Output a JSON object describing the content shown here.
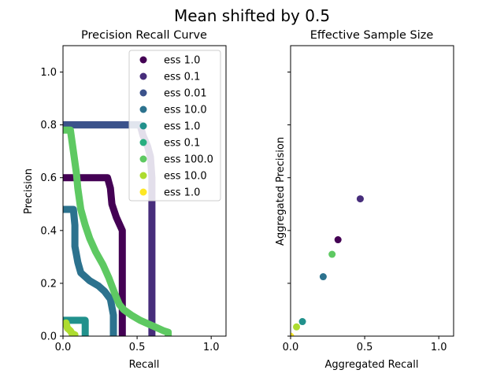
{
  "suptitle": "Mean shifted by  0.5",
  "chart_data": [
    {
      "type": "line",
      "title": "Precision Recall Curve",
      "xlabel": "Recall",
      "ylabel": "Precision",
      "xlim": [
        0,
        1.1
      ],
      "ylim": [
        0,
        1.1
      ],
      "xticks": [
        "0.0",
        "0.5",
        "1.0"
      ],
      "yticks": [
        "0.0",
        "0.2",
        "0.4",
        "0.6",
        "0.8",
        "1.0"
      ],
      "legend_position": "top-right",
      "series": [
        {
          "name": "ess 1.0",
          "color": "#440154",
          "points": [
            [
              0,
              0.6
            ],
            [
              0.3,
              0.6
            ],
            [
              0.32,
              0.56
            ],
            [
              0.33,
              0.5
            ],
            [
              0.36,
              0.45
            ],
            [
              0.4,
              0.4
            ],
            [
              0.4,
              0
            ]
          ]
        },
        {
          "name": "ess 0.1",
          "color": "#472d7b",
          "points": [
            [
              0,
              0.8
            ],
            [
              0.52,
              0.8
            ],
            [
              0.54,
              0.76
            ],
            [
              0.57,
              0.72
            ],
            [
              0.59,
              0.68
            ],
            [
              0.6,
              0.6
            ],
            [
              0.6,
              0
            ]
          ]
        },
        {
          "name": "ess 0.01",
          "color": "#3b528b",
          "points": [
            [
              0,
              0.8
            ],
            [
              0.52,
              0.8
            ]
          ]
        },
        {
          "name": "ess 10.0",
          "color": "#2c728e",
          "points": [
            [
              0,
              0.48
            ],
            [
              0.07,
              0.48
            ],
            [
              0.08,
              0.42
            ],
            [
              0.08,
              0.34
            ],
            [
              0.1,
              0.28
            ],
            [
              0.12,
              0.24
            ],
            [
              0.18,
              0.21
            ],
            [
              0.24,
              0.19
            ],
            [
              0.28,
              0.17
            ],
            [
              0.32,
              0.14
            ],
            [
              0.34,
              0.08
            ],
            [
              0.34,
              0
            ]
          ]
        },
        {
          "name": "ess 1.0",
          "color": "#21918c",
          "points": [
            [
              0,
              0.06
            ],
            [
              0.15,
              0.06
            ],
            [
              0.15,
              0
            ]
          ]
        },
        {
          "name": "ess 0.1",
          "color": "#28ae80",
          "points": []
        },
        {
          "name": "ess 100.0",
          "color": "#5ec962",
          "points": [
            [
              0,
              0.78
            ],
            [
              0.05,
              0.78
            ],
            [
              0.07,
              0.7
            ],
            [
              0.09,
              0.62
            ],
            [
              0.1,
              0.56
            ],
            [
              0.12,
              0.48
            ],
            [
              0.15,
              0.42
            ],
            [
              0.18,
              0.37
            ],
            [
              0.22,
              0.32
            ],
            [
              0.27,
              0.27
            ],
            [
              0.31,
              0.22
            ],
            [
              0.35,
              0.16
            ],
            [
              0.38,
              0.12
            ],
            [
              0.41,
              0.1
            ],
            [
              0.46,
              0.08
            ],
            [
              0.52,
              0.06
            ],
            [
              0.58,
              0.045
            ],
            [
              0.64,
              0.03
            ],
            [
              0.68,
              0.02
            ],
            [
              0.71,
              0.015
            ],
            [
              0.71,
              0
            ]
          ]
        },
        {
          "name": "ess 10.0",
          "color": "#addc30",
          "points": [
            [
              0.02,
              0.05
            ],
            [
              0.03,
              0.03
            ],
            [
              0.05,
              0.02
            ],
            [
              0.06,
              0.01
            ],
            [
              0.08,
              0.005
            ]
          ]
        },
        {
          "name": "ess 1.0",
          "color": "#fde725",
          "points": []
        }
      ]
    },
    {
      "type": "scatter",
      "title": "Effective Sample Size",
      "xlabel": "Aggregated Recall",
      "ylabel": "Aggregated Precision",
      "xlim": [
        0,
        1.1
      ],
      "ylim": [
        0,
        1.1
      ],
      "xticks": [
        "0.0",
        "0.5",
        "1.0"
      ],
      "points": [
        {
          "x": 0.47,
          "y": 0.52,
          "color": "#472d7b"
        },
        {
          "x": 0.32,
          "y": 0.365,
          "color": "#440154"
        },
        {
          "x": 0.28,
          "y": 0.31,
          "color": "#5ec962"
        },
        {
          "x": 0.22,
          "y": 0.225,
          "color": "#2c728e"
        },
        {
          "x": 0.08,
          "y": 0.055,
          "color": "#21918c"
        },
        {
          "x": 0.04,
          "y": 0.035,
          "color": "#addc30"
        },
        {
          "x": 0.0,
          "y": 0.0,
          "color": "#fde725"
        }
      ]
    }
  ]
}
